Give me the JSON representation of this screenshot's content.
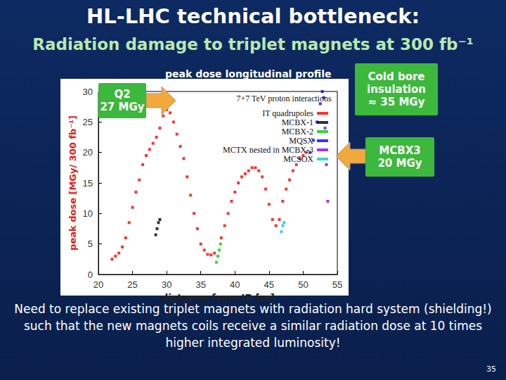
{
  "chart_data": {
    "type": "scatter",
    "title": "HL-LHC technical bottleneck:",
    "subtitle": "Radiation damage to triplet magnets  at 300 fb⁻¹",
    "plot_title": "peak dose longitudinal profile",
    "legend_title": "7+7 TeV proton interactions",
    "x_label": "distance from IP [m]",
    "y_label": "peak dose [MGy/ 300 fb⁻¹]",
    "xlim": [
      20,
      55
    ],
    "xticks": [
      20,
      25,
      30,
      35,
      40,
      45,
      50,
      55
    ],
    "ylim": [
      0,
      30
    ],
    "yticks": [
      0,
      5,
      10,
      15,
      20,
      25,
      30
    ],
    "grid": false,
    "legend": "upper right",
    "series": [
      {
        "name": "IT quadrupoles",
        "color": "#ff0000",
        "marker": "square",
        "x": [
          22,
          22.5,
          23,
          23.5,
          24,
          24.5,
          25,
          25.5,
          26,
          26.5,
          27,
          27.5,
          28,
          28.5,
          29,
          29.5,
          30,
          30.5,
          31,
          31.5,
          32,
          32.5,
          33,
          33.5,
          34,
          34.5,
          35,
          35.5,
          36,
          36.5,
          37,
          38,
          38.5,
          39,
          39.5,
          40,
          40.5,
          41,
          41.5,
          42,
          42.5,
          43,
          43.5,
          44,
          44.5,
          45,
          45.5,
          46,
          46.5,
          47,
          47.5,
          48,
          48.5,
          49,
          49.5,
          50,
          50.5
        ],
        "values": [
          2.5,
          3,
          3.5,
          4.5,
          6,
          8.5,
          11,
          13.5,
          15.5,
          18,
          19.5,
          20.5,
          21.5,
          22.5,
          24,
          26,
          27,
          26.5,
          25,
          23,
          21,
          19,
          16,
          13,
          10,
          7.5,
          5,
          4,
          3.3,
          3.2,
          3.5,
          6,
          8,
          10,
          12,
          13.5,
          15,
          16,
          16.5,
          17,
          17.5,
          17.5,
          17,
          16,
          14,
          11.5,
          9,
          8,
          9,
          12,
          14,
          15.5,
          17,
          18,
          19,
          19.5,
          20
        ]
      },
      {
        "name": "MCBX-1",
        "color": "#000000",
        "marker": "square",
        "x": [
          28.4,
          28.6,
          28.8,
          29
        ],
        "values": [
          6.5,
          7.5,
          8.5,
          9
        ]
      },
      {
        "name": "MCBX-2",
        "color": "#00cc00",
        "marker": "square",
        "x": [
          37.3,
          37.5,
          37.7,
          37.9
        ],
        "values": [
          2,
          3,
          4,
          5
        ]
      },
      {
        "name": "MQSX",
        "color": "#0000ff",
        "marker": "square",
        "x": [
          51,
          51.5,
          52,
          52.5,
          52.8,
          53
        ],
        "values": [
          20,
          22,
          25,
          28,
          30,
          29
        ]
      },
      {
        "name": "MCTX nested in MCBX-3",
        "color": "#8000ff",
        "marker": "square",
        "x": [
          53.2,
          53.4,
          53.6
        ],
        "values": [
          24,
          18,
          12
        ]
      },
      {
        "name": "MCSOX",
        "color": "#00cccc",
        "marker": "square",
        "x": [
          46.8,
          47,
          47.2
        ],
        "values": [
          7,
          8,
          8.5
        ]
      }
    ],
    "annotations": [
      {
        "lines": [
          "Q2",
          "27 MGy"
        ]
      },
      {
        "lines": [
          "Cold bore",
          "insulation",
          "≈ 35 MGy"
        ]
      },
      {
        "lines": [
          "MCBX3",
          "20 MGy"
        ]
      }
    ],
    "footnote": "Need to replace existing triplet magnets with radiation hard system (shielding!) such that the new magnets coils receive a similar radiation dose at 10 times higher integrated luminosity!",
    "page_number": "35"
  }
}
